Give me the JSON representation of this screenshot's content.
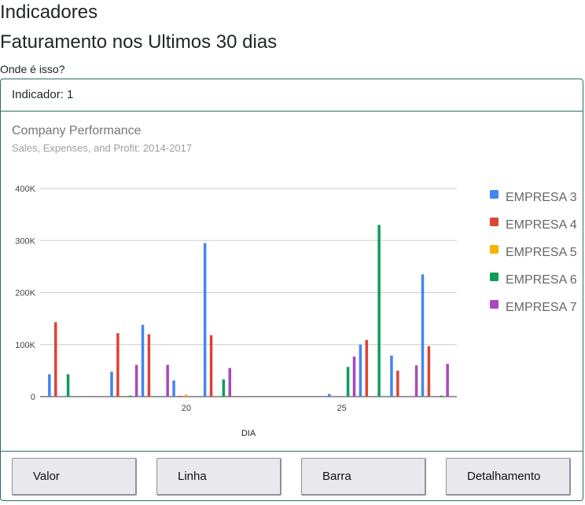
{
  "page": {
    "heading": "Indicadores",
    "subheading": "Faturamento nos Ultimos 30 dias",
    "question": "Onde é isso?"
  },
  "card": {
    "header": "Indicador: 1"
  },
  "buttons": {
    "valor": "Valor",
    "linha": "Linha",
    "barra": "Barra",
    "detalhamento": "Detalhamento"
  },
  "colors": {
    "accent_border": "#2a6f5f"
  },
  "chart_data": {
    "type": "bar",
    "title": "Company Performance",
    "subtitle": "Sales, Expenses, and Profit: 2014-2017",
    "xlabel": "DIA",
    "ylabel": "",
    "x_ticks": [
      20,
      25
    ],
    "xlim": [
      15.3,
      28.7
    ],
    "ylim": [
      0,
      400000
    ],
    "y_ticks": [
      0,
      100000,
      200000,
      300000,
      400000
    ],
    "y_tick_labels": [
      "0",
      "100K",
      "200K",
      "300K",
      "400K"
    ],
    "grid": true,
    "legend_position": "right",
    "x": [
      16,
      18,
      19,
      20,
      21,
      25,
      26,
      27,
      28
    ],
    "series": [
      {
        "name": "EMPRESA 3",
        "color": "#4285f4",
        "values": [
          43000,
          48000,
          138000,
          31000,
          295000,
          5000,
          100000,
          79000,
          235000
        ]
      },
      {
        "name": "EMPRESA 4",
        "color": "#db4437",
        "values": [
          143000,
          122000,
          120000,
          1500,
          118000,
          0,
          109000,
          50000,
          97000
        ]
      },
      {
        "name": "EMPRESA 5",
        "color": "#f4b400",
        "values": [
          0,
          0,
          0,
          4000,
          0,
          0,
          0,
          0,
          0
        ]
      },
      {
        "name": "EMPRESA 6",
        "color": "#0f9d58",
        "values": [
          43000,
          2000,
          0,
          0,
          33000,
          57000,
          330000,
          0,
          2000
        ]
      },
      {
        "name": "EMPRESA 7",
        "color": "#ab47bc",
        "values": [
          0,
          61000,
          61000,
          0,
          55000,
          77000,
          0,
          60000,
          63000
        ]
      }
    ]
  }
}
